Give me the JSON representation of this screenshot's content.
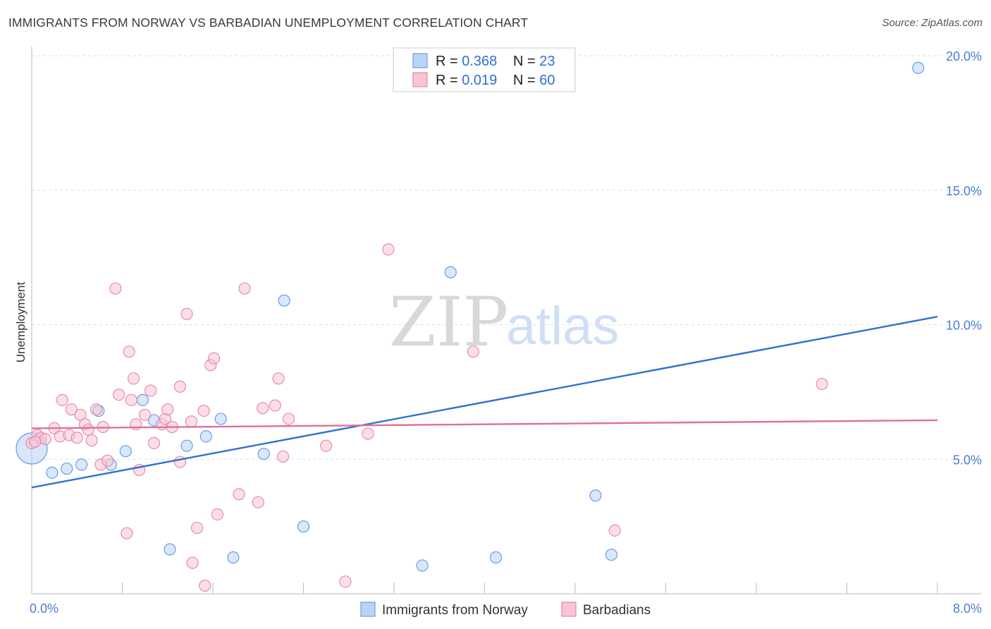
{
  "title": "IMMIGRANTS FROM NORWAY VS BARBADIAN UNEMPLOYMENT CORRELATION CHART",
  "source": "Source: ZipAtlas.com",
  "watermark": {
    "zip": "ZIP",
    "atlas": "atlas"
  },
  "legend": {
    "rows": [
      {
        "r_label": "R = ",
        "r_value": "0.368",
        "n_label": "N = ",
        "n_value": "23"
      },
      {
        "r_label": "R = ",
        "r_value": "0.019",
        "n_label": "N = ",
        "n_value": "60"
      }
    ]
  },
  "colors": {
    "norway_fill": "#b8d4f5",
    "norway_stroke": "#6a9ee0",
    "norway_line": "#2f72d0",
    "barbadian_fill": "#f8c4d6",
    "barbadian_stroke": "#e88aaa",
    "barbadian_line": "#e0709a",
    "grid": "#dddddd",
    "tick_label": "#4a7fd0"
  },
  "chart_data": {
    "type": "scatter",
    "xlabel": "",
    "ylabel": "Unemployment",
    "xlim": [
      0,
      8
    ],
    "ylim": [
      0,
      20.5
    ],
    "x_tick_labels": [
      "0.0%",
      "8.0%"
    ],
    "y_ticks": [
      5,
      10,
      15,
      20
    ],
    "y_tick_labels": [
      "5.0%",
      "10.0%",
      "15.0%",
      "20.0%"
    ],
    "grid": "horizontal dashed",
    "legend_position": "top-center",
    "series": [
      {
        "name": "Immigrants from Norway",
        "points": [
          [
            0.0,
            5.4
          ],
          [
            0.18,
            4.5
          ],
          [
            0.31,
            4.65
          ],
          [
            0.44,
            4.8
          ],
          [
            0.59,
            6.8
          ],
          [
            0.7,
            4.8
          ],
          [
            0.83,
            5.3
          ],
          [
            0.98,
            7.2
          ],
          [
            1.08,
            6.45
          ],
          [
            1.37,
            5.5
          ],
          [
            1.54,
            5.85
          ],
          [
            1.67,
            6.5
          ],
          [
            2.05,
            5.2
          ],
          [
            2.23,
            10.9
          ],
          [
            2.4,
            2.5
          ],
          [
            3.7,
            11.95
          ],
          [
            4.98,
            3.65
          ],
          [
            1.22,
            1.65
          ],
          [
            1.78,
            1.35
          ],
          [
            3.45,
            1.05
          ],
          [
            4.1,
            1.35
          ],
          [
            5.12,
            1.45
          ],
          [
            7.83,
            19.55
          ]
        ],
        "trend": [
          [
            0,
            3.95
          ],
          [
            8,
            10.3
          ]
        ]
      },
      {
        "name": "Barbadians",
        "points": [
          [
            0.0,
            5.6
          ],
          [
            0.05,
            5.9
          ],
          [
            0.08,
            5.8
          ],
          [
            0.12,
            5.75
          ],
          [
            0.2,
            6.15
          ],
          [
            0.25,
            5.85
          ],
          [
            0.27,
            7.2
          ],
          [
            0.33,
            5.9
          ],
          [
            0.35,
            6.85
          ],
          [
            0.4,
            5.8
          ],
          [
            0.43,
            6.65
          ],
          [
            0.47,
            6.3
          ],
          [
            0.5,
            6.1
          ],
          [
            0.53,
            5.7
          ],
          [
            0.57,
            6.85
          ],
          [
            0.61,
            4.8
          ],
          [
            0.63,
            6.2
          ],
          [
            0.67,
            4.95
          ],
          [
            0.74,
            11.35
          ],
          [
            0.77,
            7.4
          ],
          [
            0.84,
            2.25
          ],
          [
            0.86,
            9.0
          ],
          [
            0.88,
            7.2
          ],
          [
            0.9,
            8.0
          ],
          [
            0.92,
            6.3
          ],
          [
            0.95,
            4.6
          ],
          [
            1.0,
            6.65
          ],
          [
            1.05,
            7.55
          ],
          [
            1.08,
            5.6
          ],
          [
            1.15,
            6.3
          ],
          [
            1.18,
            6.5
          ],
          [
            1.2,
            6.85
          ],
          [
            1.24,
            6.2
          ],
          [
            1.31,
            7.7
          ],
          [
            1.31,
            4.9
          ],
          [
            1.37,
            10.4
          ],
          [
            1.41,
            6.4
          ],
          [
            1.42,
            1.15
          ],
          [
            1.46,
            2.45
          ],
          [
            1.52,
            6.8
          ],
          [
            1.58,
            8.5
          ],
          [
            1.61,
            8.75
          ],
          [
            1.64,
            2.95
          ],
          [
            1.53,
            0.3
          ],
          [
            1.83,
            3.7
          ],
          [
            1.88,
            11.35
          ],
          [
            2.0,
            3.4
          ],
          [
            2.04,
            6.9
          ],
          [
            2.15,
            7.0
          ],
          [
            2.18,
            8.0
          ],
          [
            2.22,
            5.1
          ],
          [
            2.27,
            6.5
          ],
          [
            2.6,
            5.5
          ],
          [
            2.77,
            0.45
          ],
          [
            2.97,
            5.95
          ],
          [
            3.15,
            12.8
          ],
          [
            3.9,
            9.0
          ],
          [
            5.15,
            2.35
          ],
          [
            6.98,
            7.8
          ],
          [
            0.03,
            5.65
          ]
        ],
        "trend": [
          [
            0,
            6.15
          ],
          [
            8,
            6.45
          ]
        ]
      }
    ]
  }
}
